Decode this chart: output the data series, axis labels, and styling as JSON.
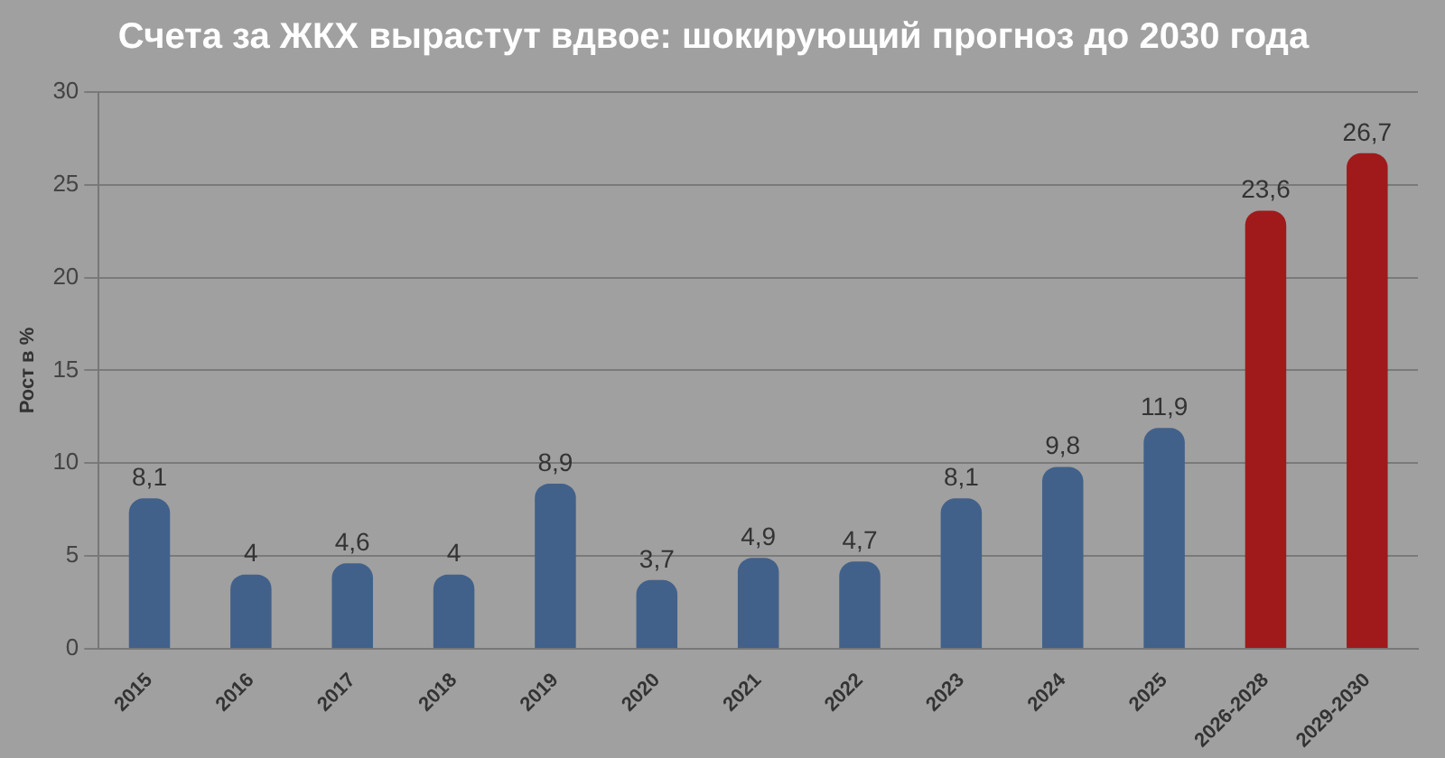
{
  "chart_data": {
    "type": "bar",
    "title": "Счета за ЖКХ вырастут вдвое: шокирующий прогноз до 2030 года",
    "ylabel": "Рост в %",
    "categories": [
      "2015",
      "2016",
      "2017",
      "2018",
      "2019",
      "2020",
      "2021",
      "2022",
      "2023",
      "2024",
      "2025",
      "2026-2028",
      "2029-2030"
    ],
    "values": [
      8.1,
      4,
      4.6,
      4,
      8.9,
      3.7,
      4.9,
      4.7,
      8.1,
      9.8,
      11.9,
      23.6,
      26.7
    ],
    "value_labels": [
      "8,1",
      "4",
      "4,6",
      "4",
      "8,9",
      "3,7",
      "4,9",
      "4,7",
      "8,1",
      "9,8",
      "11,9",
      "23,6",
      "26,7"
    ],
    "colors": [
      "#41618a",
      "#41618a",
      "#41618a",
      "#41618a",
      "#41618a",
      "#41618a",
      "#41618a",
      "#41618a",
      "#41618a",
      "#41618a",
      "#41618a",
      "#a01a1c",
      "#a01a1c"
    ],
    "ylim": [
      0,
      30
    ],
    "yticks": [
      0,
      5,
      10,
      15,
      20,
      25,
      30
    ],
    "grid": "y"
  }
}
